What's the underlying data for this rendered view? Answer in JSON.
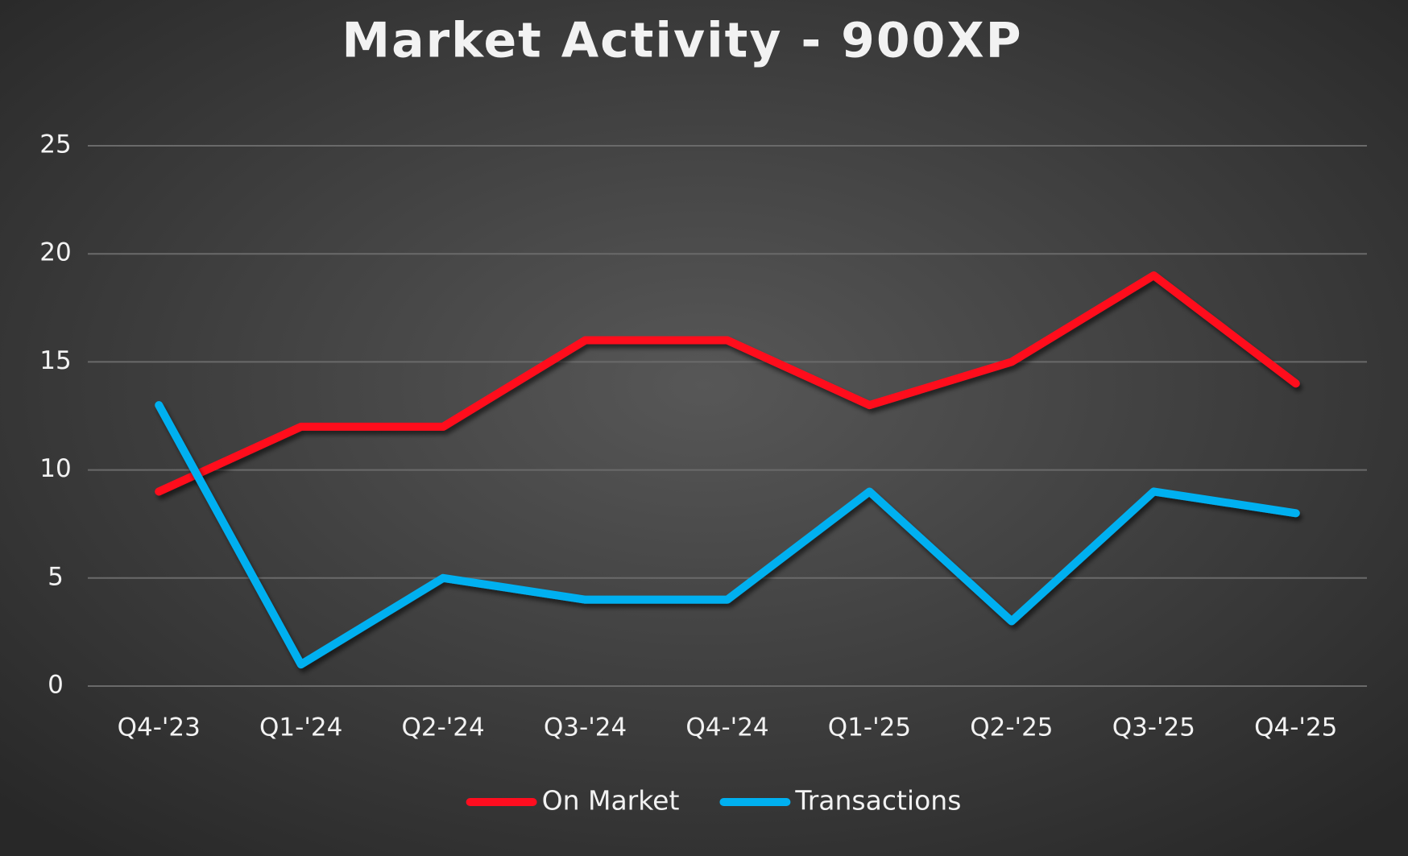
{
  "chart_data": {
    "type": "line",
    "title": "Market Activity - 900XP",
    "categories": [
      "Q4-'23",
      "Q1-'24",
      "Q2-'24",
      "Q3-'24",
      "Q4-'24",
      "Q1-'25",
      "Q2-'25",
      "Q3-'25",
      "Q4-'25"
    ],
    "series": [
      {
        "name": "On Market",
        "color": "#ff0d1f",
        "values": [
          9,
          12,
          12,
          16,
          16,
          13,
          15,
          19,
          14
        ]
      },
      {
        "name": "Transactions",
        "color": "#00b0f0",
        "values": [
          13,
          1,
          5,
          4,
          4,
          9,
          3,
          9,
          8
        ]
      }
    ],
    "ylim": [
      0,
      25
    ],
    "yticks": [
      0,
      5,
      10,
      15,
      20,
      25
    ],
    "grid": true
  }
}
